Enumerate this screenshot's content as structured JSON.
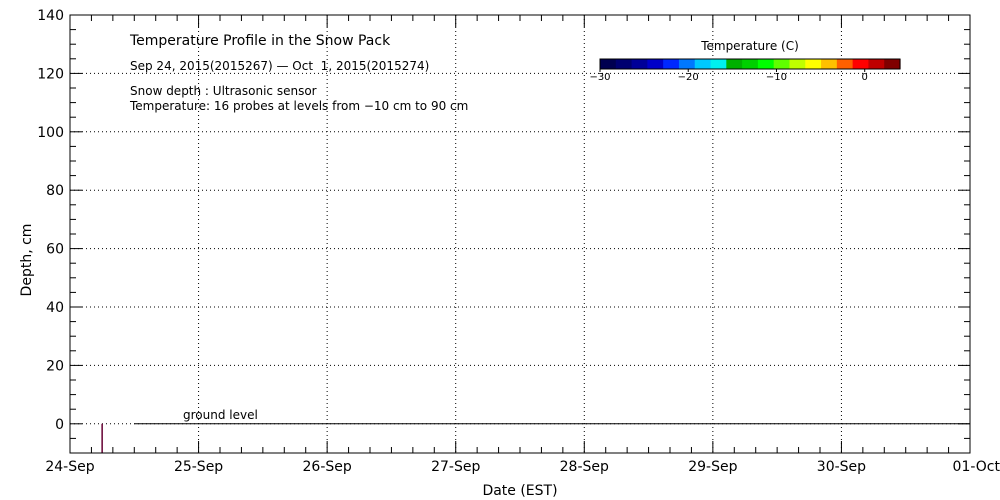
{
  "chart_data": {
    "type": "heatmap",
    "title": "Temperature Profile in the Snow Pack",
    "subtitle": "Sep 24, 2015(2015267) — Oct  1, 2015(2015274)",
    "notes": [
      "Snow depth : Ultrasonic sensor",
      "Temperature: 16 probes at levels from −10 cm to 90 cm"
    ],
    "xlabel": "Date (EST)",
    "ylabel": "Depth, cm",
    "x_ticks": [
      "24-Sep",
      "25-Sep",
      "26-Sep",
      "27-Sep",
      "28-Sep",
      "29-Sep",
      "30-Sep",
      "01-Oct"
    ],
    "xlim": [
      "2015-09-24",
      "2015-10-01"
    ],
    "ylim": [
      -10,
      140
    ],
    "y_ticks": [
      0,
      20,
      40,
      60,
      80,
      100,
      120,
      140
    ],
    "grid": true,
    "ground_label": "ground level",
    "ground_level_value": 0,
    "snow_depth_marker": {
      "x": "2015-09-24",
      "x_day_offset": 0.25,
      "y_from": -10,
      "y_to": 0,
      "color": "#660033"
    },
    "colorbar": {
      "title": "Temperature (C)",
      "ticks": [
        -30,
        -20,
        -10,
        0
      ],
      "range": [
        -30,
        4
      ],
      "colors": [
        "#000050",
        "#000070",
        "#000098",
        "#0000c8",
        "#0028ff",
        "#0078ff",
        "#00c8ff",
        "#00f0f0",
        "#00b000",
        "#00d000",
        "#00ff00",
        "#60ff00",
        "#c0ff00",
        "#ffff00",
        "#ffc000",
        "#ff6000",
        "#ff0000",
        "#c00000",
        "#800000"
      ]
    },
    "series": []
  }
}
